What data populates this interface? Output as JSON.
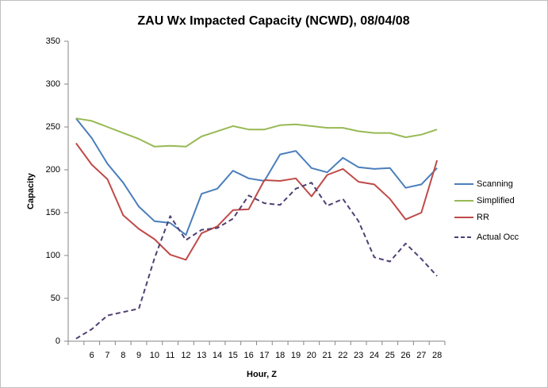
{
  "chart_data": {
    "type": "line",
    "title": "ZAU Wx Impacted Capacity (NCWD), 08/04/08",
    "xlabel": "Hour, Z",
    "ylabel": "Capacity",
    "categories": [
      null,
      "6",
      "7",
      "8",
      "9",
      "10",
      "11",
      "12",
      "13",
      "14",
      "15",
      "16",
      "17",
      "18",
      "19",
      "20",
      "21",
      "22",
      "23",
      "24",
      "25",
      "26",
      "27",
      "28"
    ],
    "ylim": [
      0,
      350
    ],
    "yticks": [
      0,
      50,
      100,
      150,
      200,
      250,
      300,
      350
    ],
    "grid": false,
    "legend": "right",
    "series": [
      {
        "name": "Scanning",
        "color": "#4a7ebb",
        "dashed": false,
        "values": [
          260,
          237,
          207,
          185,
          157,
          140,
          138,
          124,
          172,
          178,
          199,
          190,
          187,
          218,
          222,
          202,
          197,
          214,
          203,
          201,
          202,
          179,
          183,
          202
        ]
      },
      {
        "name": "Simplified",
        "color": "#98b954",
        "dashed": false,
        "values": [
          260,
          257,
          250,
          243,
          236,
          227,
          228,
          227,
          239,
          245,
          251,
          247,
          247,
          252,
          253,
          251,
          249,
          249,
          245,
          243,
          243,
          238,
          241,
          247
        ]
      },
      {
        "name": "RR",
        "color": "#be4b48",
        "dashed": false,
        "values": [
          231,
          206,
          189,
          147,
          131,
          119,
          101,
          95,
          126,
          134,
          153,
          154,
          188,
          187,
          190,
          169,
          194,
          201,
          186,
          183,
          166,
          142,
          150,
          211
        ]
      },
      {
        "name": "Actual Occ",
        "color": "#4f3f73",
        "dashed": true,
        "values": [
          3,
          14,
          30,
          34,
          38,
          97,
          146,
          118,
          130,
          132,
          143,
          170,
          161,
          159,
          178,
          185,
          158,
          166,
          140,
          98,
          93,
          114,
          96,
          76
        ]
      }
    ]
  }
}
